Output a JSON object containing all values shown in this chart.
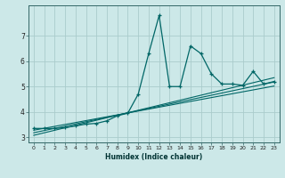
{
  "xlabel": "Humidex (Indice chaleur)",
  "background_color": "#cce8e8",
  "grid_color": "#aacccc",
  "line_color": "#006666",
  "xlim": [
    -0.5,
    23.5
  ],
  "ylim": [
    2.8,
    8.2
  ],
  "yticks": [
    3,
    4,
    5,
    6,
    7
  ],
  "xticks": [
    0,
    1,
    2,
    3,
    4,
    5,
    6,
    7,
    8,
    9,
    10,
    11,
    12,
    13,
    14,
    15,
    16,
    17,
    18,
    19,
    20,
    21,
    22,
    23
  ],
  "main_data": [
    [
      0,
      3.35
    ],
    [
      1,
      3.35
    ],
    [
      2,
      3.35
    ],
    [
      3,
      3.38
    ],
    [
      4,
      3.45
    ],
    [
      5,
      3.52
    ],
    [
      6,
      3.55
    ],
    [
      7,
      3.65
    ],
    [
      8,
      3.85
    ],
    [
      9,
      3.95
    ],
    [
      10,
      4.7
    ],
    [
      11,
      6.3
    ],
    [
      12,
      7.8
    ],
    [
      13,
      5.0
    ],
    [
      14,
      5.0
    ],
    [
      15,
      6.6
    ],
    [
      16,
      6.3
    ],
    [
      17,
      5.5
    ],
    [
      18,
      5.1
    ],
    [
      19,
      5.1
    ],
    [
      20,
      5.05
    ],
    [
      21,
      5.6
    ],
    [
      22,
      5.1
    ],
    [
      23,
      5.2
    ]
  ],
  "reg_line1": [
    [
      0,
      3.08
    ],
    [
      23,
      5.35
    ]
  ],
  "reg_line2": [
    [
      0,
      3.18
    ],
    [
      23,
      5.18
    ]
  ],
  "reg_line3": [
    [
      0,
      3.28
    ],
    [
      23,
      5.02
    ]
  ]
}
